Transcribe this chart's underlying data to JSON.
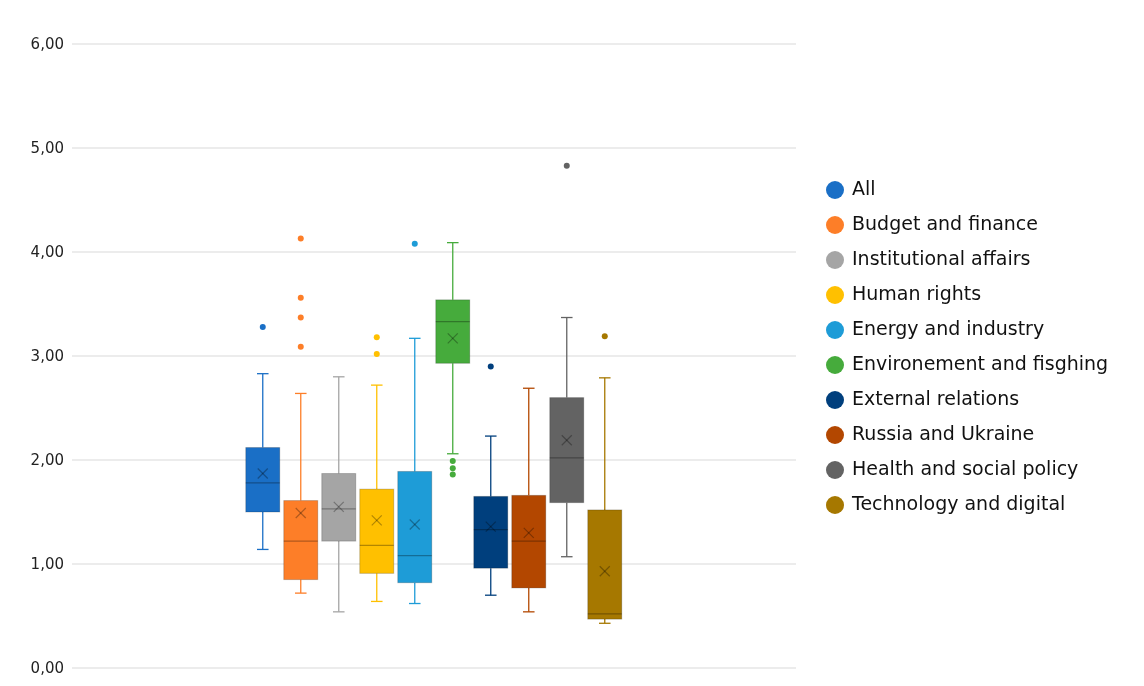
{
  "chart_data": {
    "type": "box",
    "categories": [
      null
    ],
    "ylim": [
      0,
      6
    ],
    "yticks": [
      {
        "value": 0,
        "label": "0,00"
      },
      {
        "value": 1,
        "label": "1,00"
      },
      {
        "value": 2,
        "label": "2,00"
      },
      {
        "value": 3,
        "label": "3,00"
      },
      {
        "value": 4,
        "label": "4,00"
      },
      {
        "value": 5,
        "label": "5,00"
      },
      {
        "value": 6,
        "label": "6,00"
      }
    ],
    "grid": "y",
    "legend": "right",
    "tick_labels": "y",
    "series": [
      {
        "name": "All",
        "color": "#1a6fc6",
        "boxes": [
          {
            "low": 1.14,
            "q1": 1.5,
            "median": 1.78,
            "q3": 2.12,
            "high": 2.83,
            "mean": 1.87,
            "outliers": [
              3.28
            ]
          }
        ]
      },
      {
        "name": "Budget and finance",
        "color": "#fd7e28",
        "boxes": [
          {
            "low": 0.72,
            "q1": 0.85,
            "median": 1.22,
            "q3": 1.61,
            "high": 2.64,
            "mean": 1.49,
            "outliers": [
              3.09,
              3.37,
              3.56,
              4.13
            ]
          }
        ]
      },
      {
        "name": "Institutional affairs",
        "color": "#a5a5a5",
        "boxes": [
          {
            "low": 0.54,
            "q1": 1.22,
            "median": 1.53,
            "q3": 1.87,
            "high": 2.8,
            "mean": 1.55
          }
        ]
      },
      {
        "name": "Human rights",
        "color": "#ffc000",
        "boxes": [
          {
            "low": 0.64,
            "q1": 0.91,
            "median": 1.18,
            "q3": 1.72,
            "high": 2.72,
            "mean": 1.42,
            "outliers": [
              3.02,
              3.18
            ]
          }
        ]
      },
      {
        "name": "Energy and industry",
        "color": "#1e9cd7",
        "boxes": [
          {
            "low": 0.62,
            "q1": 0.82,
            "median": 1.08,
            "q3": 1.89,
            "high": 3.17,
            "mean": 1.38,
            "outliers": [
              4.08
            ]
          }
        ]
      },
      {
        "name": "Environement and fisghing",
        "color": "#46ab3c",
        "boxes": [
          {
            "low": 2.06,
            "q1": 2.93,
            "median": 3.33,
            "q3": 3.54,
            "high": 4.09,
            "mean": 3.17,
            "outliers": [
              1.86,
              1.92,
              1.99
            ]
          }
        ]
      },
      {
        "name": "External relations",
        "color": "#003f7d",
        "boxes": [
          {
            "low": 0.7,
            "q1": 0.96,
            "median": 1.33,
            "q3": 1.65,
            "high": 2.23,
            "mean": 1.36,
            "outliers": [
              2.9
            ]
          }
        ]
      },
      {
        "name": "Russia and Ukraine",
        "color": "#b34700",
        "boxes": [
          {
            "low": 0.54,
            "q1": 0.77,
            "median": 1.22,
            "q3": 1.66,
            "high": 2.69,
            "mean": 1.3
          }
        ]
      },
      {
        "name": "Health and social policy",
        "color": "#636363",
        "boxes": [
          {
            "low": 1.07,
            "q1": 1.59,
            "median": 2.02,
            "q3": 2.6,
            "high": 3.37,
            "mean": 2.19,
            "outliers": [
              4.83
            ]
          }
        ]
      },
      {
        "name": "Technology and digital",
        "color": "#a67800",
        "boxes": [
          {
            "low": 0.43,
            "q1": 0.47,
            "median": 0.52,
            "q3": 1.52,
            "high": 2.79,
            "mean": 0.93,
            "outliers": [
              3.19
            ]
          }
        ]
      }
    ]
  }
}
